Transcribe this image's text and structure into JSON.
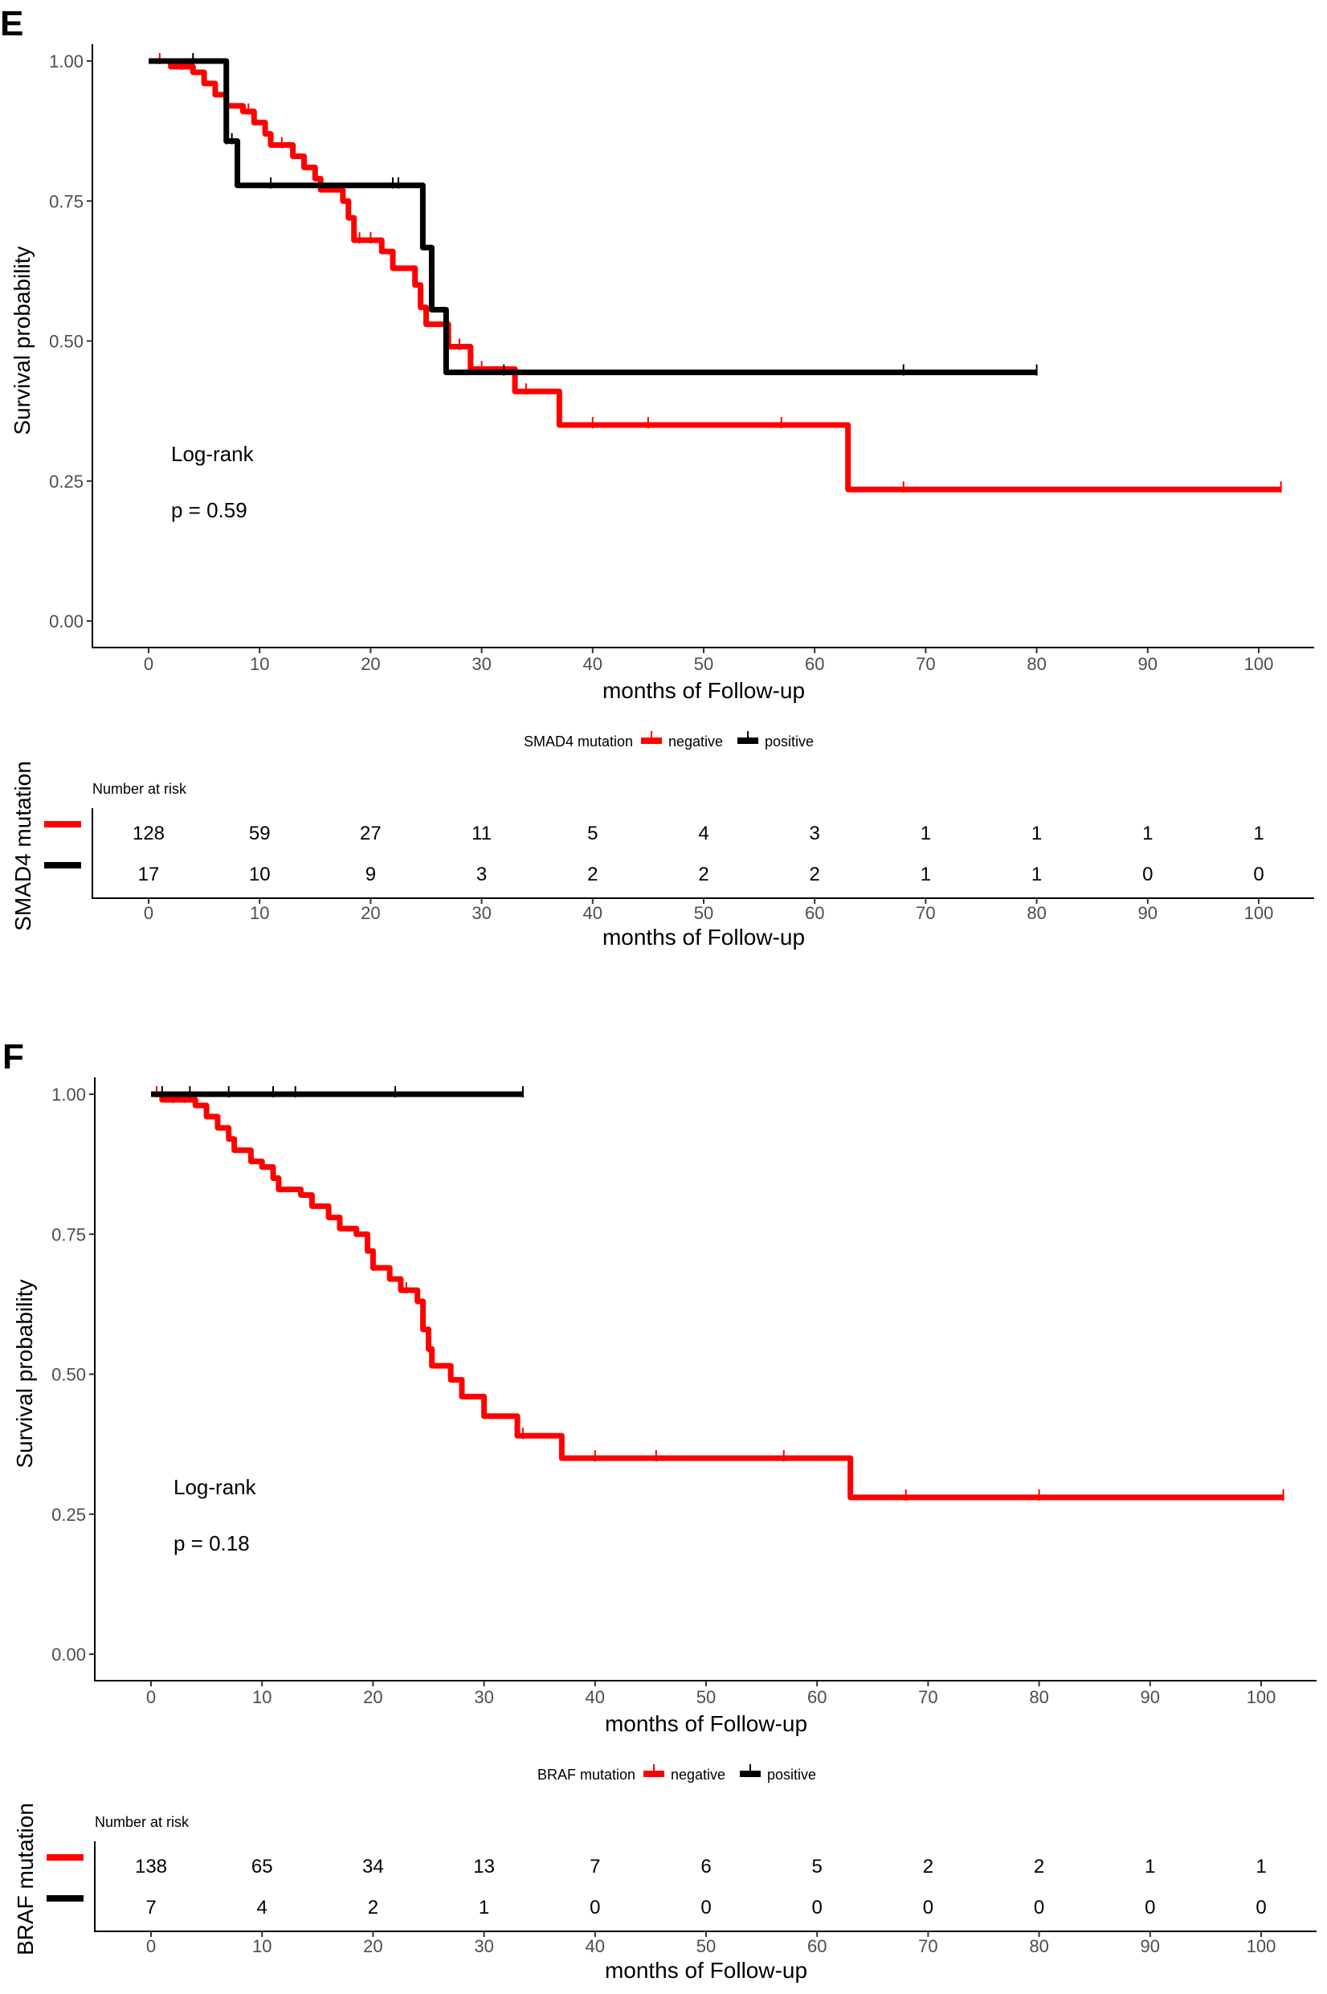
{
  "chart_data": [
    {
      "type": "line",
      "panel_label": "E",
      "title": "",
      "xlabel": "months of Follow-up",
      "ylabel": "Survival probability",
      "xlim": [
        0,
        100
      ],
      "ylim": [
        0,
        1
      ],
      "x_ticks": [
        "0",
        "10",
        "20",
        "30",
        "40",
        "50",
        "60",
        "70",
        "80",
        "90",
        "100"
      ],
      "y_ticks": [
        "0.00",
        "0.25",
        "0.50",
        "0.75",
        "1.00"
      ],
      "annotation": {
        "test": "Log-rank",
        "p": "p = 0.59"
      },
      "legend": {
        "title": "SMAD4 mutation",
        "position": "bottom"
      },
      "colors": {
        "negative": "#ff0000",
        "positive": "#000000"
      },
      "series": [
        {
          "name": "negative",
          "color": "#ff0000",
          "steps": [
            [
              0,
              1.0
            ],
            [
              2,
              0.99
            ],
            [
              4,
              0.98
            ],
            [
              5,
              0.96
            ],
            [
              6,
              0.94
            ],
            [
              7,
              0.92
            ],
            [
              8.5,
              0.91
            ],
            [
              9.5,
              0.89
            ],
            [
              10.5,
              0.87
            ],
            [
              11,
              0.85
            ],
            [
              13,
              0.83
            ],
            [
              14,
              0.81
            ],
            [
              15,
              0.79
            ],
            [
              15.5,
              0.77
            ],
            [
              17.5,
              0.75
            ],
            [
              18,
              0.72
            ],
            [
              18.5,
              0.68
            ],
            [
              21,
              0.66
            ],
            [
              22,
              0.63
            ],
            [
              24,
              0.6
            ],
            [
              24.5,
              0.56
            ],
            [
              25,
              0.53
            ],
            [
              27,
              0.49
            ],
            [
              29,
              0.45
            ],
            [
              33,
              0.41
            ],
            [
              37,
              0.35
            ],
            [
              63,
              0.235
            ]
          ],
          "end": 102,
          "censored": [
            1,
            3,
            9,
            12,
            19,
            20,
            28,
            30,
            34,
            40,
            45,
            57,
            68,
            102
          ]
        },
        {
          "name": "positive",
          "color": "#000000",
          "steps": [
            [
              0,
              1.0
            ],
            [
              7,
              0.857
            ],
            [
              8,
              0.778
            ],
            [
              24.7,
              0.667
            ],
            [
              25.5,
              0.556
            ],
            [
              26.8,
              0.444
            ]
          ],
          "end": 80,
          "censored": [
            4,
            7,
            7.5,
            11,
            22,
            22.5,
            32,
            68,
            80
          ]
        }
      ],
      "risk_table": {
        "title": "Number at risk",
        "ylabel": "SMAD4 mutation",
        "xlabel": "months of Follow-up",
        "times": [
          "0",
          "10",
          "20",
          "30",
          "40",
          "50",
          "60",
          "70",
          "80",
          "90",
          "100"
        ],
        "rows": [
          {
            "name": "negative",
            "color": "#ff0000",
            "values": [
              "128",
              "59",
              "27",
              "11",
              "5",
              "4",
              "3",
              "1",
              "1",
              "1",
              "1"
            ]
          },
          {
            "name": "positive",
            "color": "#000000",
            "values": [
              "17",
              "10",
              "9",
              "3",
              "2",
              "2",
              "2",
              "1",
              "1",
              "0",
              "0"
            ]
          }
        ]
      }
    },
    {
      "type": "line",
      "panel_label": "F",
      "title": "",
      "xlabel": "months of Follow-up",
      "ylabel": "Survival probability",
      "xlim": [
        0,
        100
      ],
      "ylim": [
        0,
        1
      ],
      "x_ticks": [
        "0",
        "10",
        "20",
        "30",
        "40",
        "50",
        "60",
        "70",
        "80",
        "90",
        "100"
      ],
      "y_ticks": [
        "0.00",
        "0.25",
        "0.50",
        "0.75",
        "1.00"
      ],
      "annotation": {
        "test": "Log-rank",
        "p": "p = 0.18"
      },
      "legend": {
        "title": "BRAF mutation",
        "position": "bottom"
      },
      "colors": {
        "negative": "#ff0000",
        "positive": "#000000"
      },
      "series": [
        {
          "name": "negative",
          "color": "#ff0000",
          "steps": [
            [
              0,
              1.0
            ],
            [
              1,
              0.99
            ],
            [
              4,
              0.98
            ],
            [
              5,
              0.96
            ],
            [
              6,
              0.94
            ],
            [
              7,
              0.92
            ],
            [
              7.5,
              0.9
            ],
            [
              9,
              0.88
            ],
            [
              10,
              0.87
            ],
            [
              11,
              0.85
            ],
            [
              11.5,
              0.83
            ],
            [
              13.5,
              0.82
            ],
            [
              14.5,
              0.8
            ],
            [
              16,
              0.78
            ],
            [
              17,
              0.76
            ],
            [
              18.5,
              0.75
            ],
            [
              19.5,
              0.72
            ],
            [
              20,
              0.69
            ],
            [
              21.5,
              0.67
            ],
            [
              22.5,
              0.65
            ],
            [
              24,
              0.63
            ],
            [
              24.5,
              0.58
            ],
            [
              25,
              0.545
            ],
            [
              25.3,
              0.515
            ],
            [
              27,
              0.49
            ],
            [
              28,
              0.46
            ],
            [
              30,
              0.425
            ],
            [
              33,
              0.39
            ],
            [
              37,
              0.35
            ],
            [
              63,
              0.28
            ]
          ],
          "end": 102,
          "censored": [
            0.5,
            2,
            3,
            20,
            23,
            25,
            33.5,
            40,
            45.5,
            57,
            68,
            80,
            102
          ]
        },
        {
          "name": "positive",
          "color": "#000000",
          "steps": [
            [
              0,
              1.0
            ]
          ],
          "end": 33.5,
          "censored": [
            1,
            3.5,
            7,
            11,
            13,
            22,
            33.5
          ]
        }
      ],
      "risk_table": {
        "title": "Number at risk",
        "ylabel": "BRAF mutation",
        "xlabel": "months of Follow-up",
        "times": [
          "0",
          "10",
          "20",
          "30",
          "40",
          "50",
          "60",
          "70",
          "80",
          "90",
          "100"
        ],
        "rows": [
          {
            "name": "negative",
            "color": "#ff0000",
            "values": [
              "138",
              "65",
              "34",
              "13",
              "7",
              "6",
              "5",
              "2",
              "2",
              "1",
              "1"
            ]
          },
          {
            "name": "positive",
            "color": "#000000",
            "values": [
              "7",
              "4",
              "2",
              "1",
              "0",
              "0",
              "0",
              "0",
              "0",
              "0",
              "0"
            ]
          }
        ]
      }
    }
  ]
}
